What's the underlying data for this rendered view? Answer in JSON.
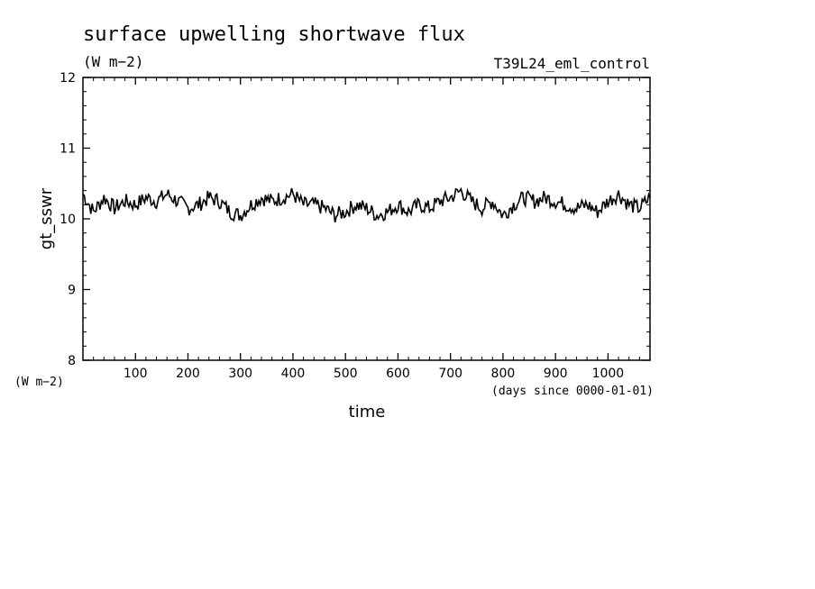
{
  "chart_data": {
    "type": "line",
    "title": "surface upwelling shortwave flux",
    "subtitle": "(W m−2)",
    "experiment": "T39L24_eml_control",
    "ylabel": "gt_sswr",
    "yunits": "(W m−2)",
    "xlabel": "time",
    "xunits": "(days since 0000-01-01)",
    "xlim": [
      0,
      1080
    ],
    "ylim": [
      8,
      12
    ],
    "xticks": [
      100,
      200,
      300,
      400,
      500,
      600,
      700,
      800,
      900,
      1000
    ],
    "yticks": [
      8,
      9,
      10,
      11,
      12
    ],
    "grid": false,
    "series": [
      {
        "x": [
          0,
          20,
          40,
          60,
          80,
          100,
          120,
          140,
          160,
          180,
          200,
          220,
          240,
          260,
          280,
          300,
          320,
          340,
          360,
          380,
          400,
          420,
          440,
          460,
          480,
          500,
          520,
          540,
          560,
          580,
          600,
          620,
          640,
          660,
          680,
          700,
          720,
          740,
          760,
          780,
          800,
          820,
          840,
          860,
          880,
          900,
          920,
          940,
          960,
          980,
          1000,
          1020,
          1040,
          1060,
          1080
        ],
        "values": [
          10.35,
          10.1,
          10.3,
          10.15,
          10.25,
          10.2,
          10.3,
          10.25,
          10.35,
          10.25,
          10.15,
          10.2,
          10.3,
          10.25,
          10.1,
          10.05,
          10.2,
          10.3,
          10.25,
          10.3,
          10.35,
          10.2,
          10.2,
          10.15,
          10.05,
          10.1,
          10.2,
          10.15,
          10.05,
          10.1,
          10.2,
          10.1,
          10.2,
          10.15,
          10.25,
          10.3,
          10.4,
          10.25,
          10.15,
          10.25,
          10.05,
          10.2,
          10.3,
          10.25,
          10.3,
          10.25,
          10.2,
          10.15,
          10.2,
          10.1,
          10.25,
          10.35,
          10.2,
          10.15,
          10.3
        ]
      }
    ]
  }
}
